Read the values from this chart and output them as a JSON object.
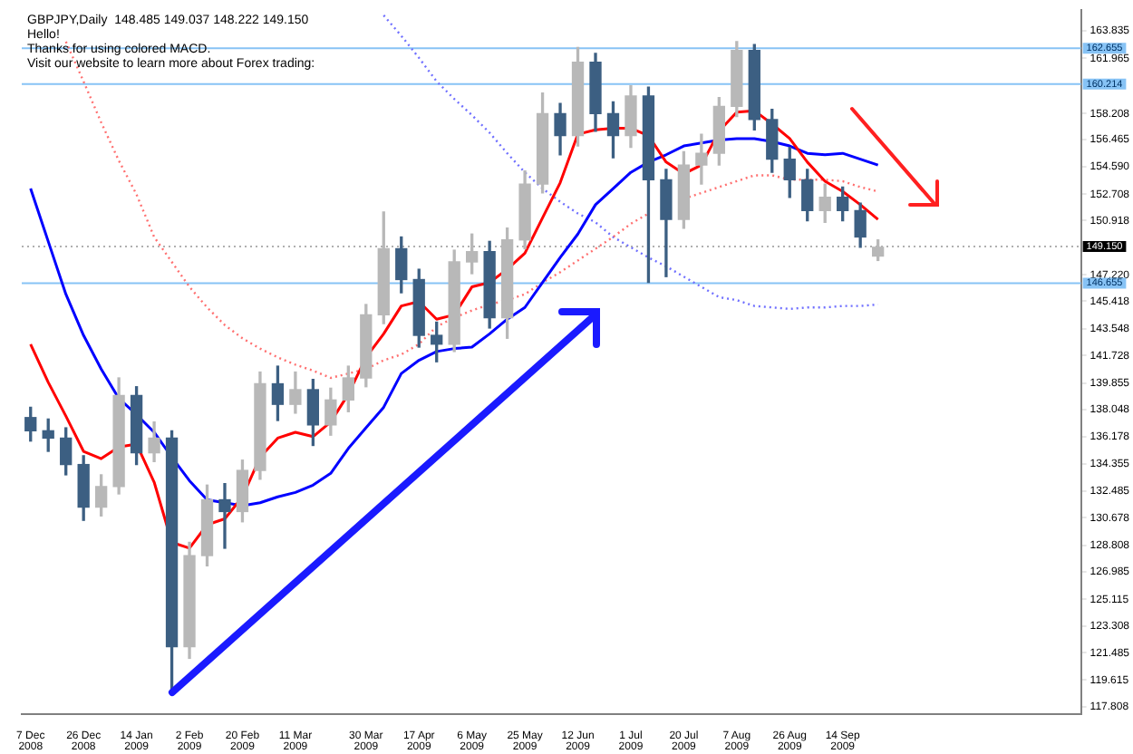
{
  "chart_data": {
    "type": "candlestick",
    "title": "GBPJPY,Daily  148.485 149.037 148.222 149.150",
    "annotations": [
      "Hello!",
      "Thanks for using colored MACD.",
      "Visit our website to learn more about Forex trading:"
    ],
    "categories": [
      "7 Dec 2008",
      null,
      null,
      "26 Dec 2008",
      null,
      null,
      "14 Jan 2009",
      null,
      null,
      "2 Feb 2009",
      null,
      null,
      "20 Feb 2009",
      null,
      null,
      "11 Mar 2009",
      null,
      null,
      null,
      "30 Mar 2009",
      null,
      null,
      "17 Apr 2009",
      null,
      null,
      "6 May 2009",
      null,
      null,
      "25 May 2009",
      null,
      null,
      "12 Jun 2009",
      null,
      null,
      "1 Jul 2009",
      null,
      null,
      "20 Jul 2009",
      null,
      null,
      "7 Aug 2009",
      null,
      null,
      "26 Aug 2009",
      null,
      null,
      "14 Sep 2009",
      null,
      null,
      null,
      null,
      null,
      null,
      null,
      null,
      null,
      null,
      null,
      null,
      null
    ],
    "ohlc": [
      [
        137.5,
        138.2,
        135.9,
        136.6
      ],
      [
        136.6,
        137.4,
        135.2,
        136.1
      ],
      [
        136.1,
        136.8,
        133.6,
        134.3
      ],
      [
        134.3,
        134.9,
        130.5,
        131.4
      ],
      [
        131.4,
        133.6,
        130.8,
        132.8
      ],
      [
        132.8,
        140.2,
        132.3,
        139.0
      ],
      [
        139.0,
        139.6,
        134.3,
        135.1
      ],
      [
        135.1,
        137.2,
        134.5,
        136.1
      ],
      [
        136.1,
        136.6,
        119.0,
        121.9
      ],
      [
        121.9,
        129.0,
        121.1,
        128.1
      ],
      [
        128.1,
        132.9,
        127.4,
        131.9
      ],
      [
        131.9,
        133.0,
        128.6,
        131.1
      ],
      [
        131.1,
        134.6,
        130.4,
        133.9
      ],
      [
        133.9,
        140.6,
        133.3,
        139.8
      ],
      [
        139.8,
        141.0,
        137.3,
        138.4
      ],
      [
        138.4,
        140.6,
        137.8,
        139.4
      ],
      [
        139.4,
        140.1,
        135.6,
        137.0
      ],
      [
        137.0,
        139.5,
        136.3,
        138.7
      ],
      [
        138.7,
        141.0,
        137.9,
        140.2
      ],
      [
        140.2,
        145.2,
        139.6,
        144.5
      ],
      [
        144.5,
        151.5,
        143.9,
        149.0
      ],
      [
        149.0,
        149.8,
        146.0,
        146.9
      ],
      [
        146.9,
        147.6,
        142.3,
        143.1
      ],
      [
        143.1,
        144.0,
        141.3,
        142.5
      ],
      [
        142.5,
        148.9,
        142.0,
        148.1
      ],
      [
        148.1,
        150.0,
        147.3,
        148.8
      ],
      [
        148.8,
        149.5,
        143.6,
        144.3
      ],
      [
        144.3,
        150.4,
        142.9,
        149.6
      ],
      [
        149.6,
        154.3,
        149.0,
        153.4
      ],
      [
        153.4,
        159.6,
        152.8,
        158.2
      ],
      [
        158.2,
        158.9,
        155.4,
        156.7
      ],
      [
        156.7,
        162.7,
        156.0,
        161.7
      ],
      [
        161.7,
        162.3,
        157.0,
        158.2
      ],
      [
        158.2,
        159.0,
        155.2,
        156.7
      ],
      [
        156.7,
        160.1,
        155.9,
        159.4
      ],
      [
        159.4,
        160.0,
        146.7,
        153.7
      ],
      [
        153.7,
        154.4,
        147.1,
        151.0
      ],
      [
        151.0,
        155.6,
        150.4,
        154.7
      ],
      [
        154.7,
        156.8,
        153.4,
        155.5
      ],
      [
        155.5,
        159.3,
        154.7,
        158.7
      ],
      [
        158.7,
        163.1,
        158.0,
        162.5
      ],
      [
        162.5,
        162.9,
        157.1,
        157.8
      ],
      [
        157.8,
        158.5,
        154.2,
        155.1
      ],
      [
        155.1,
        155.9,
        152.5,
        153.7
      ],
      [
        153.7,
        154.4,
        150.9,
        151.6
      ],
      [
        151.6,
        153.4,
        150.8,
        152.5
      ],
      [
        152.5,
        153.2,
        150.9,
        151.6
      ],
      [
        151.6,
        152.1,
        149.1,
        149.8
      ],
      [
        148.5,
        149.6,
        148.2,
        149.1
      ],
      null,
      null,
      null,
      null,
      null,
      null,
      null,
      null,
      null,
      null,
      null
    ],
    "colors": [
      "#3c5f82",
      "#3c5f82",
      "#3c5f82",
      "#3c5f82",
      "#b8b8b8",
      "#b8b8b8",
      "#3c5f82",
      "#b8b8b8",
      "#3c5f82",
      "#b8b8b8",
      "#b8b8b8",
      "#3c5f82",
      "#b8b8b8",
      "#b8b8b8",
      "#3c5f82",
      "#b8b8b8",
      "#3c5f82",
      "#b8b8b8",
      "#b8b8b8",
      "#b8b8b8",
      "#b8b8b8",
      "#3c5f82",
      "#3c5f82",
      "#3c5f82",
      "#b8b8b8",
      "#b8b8b8",
      "#3c5f82",
      "#b8b8b8",
      "#b8b8b8",
      "#b8b8b8",
      "#3c5f82",
      "#b8b8b8",
      "#3c5f82",
      "#3c5f82",
      "#b8b8b8",
      "#3c5f82",
      "#3c5f82",
      "#b8b8b8",
      "#b8b8b8",
      "#b8b8b8",
      "#b8b8b8",
      "#3c5f82",
      "#3c5f82",
      "#3c5f82",
      "#3c5f82",
      "#b8b8b8",
      "#3c5f82",
      "#3c5f82",
      "#b8b8b8",
      null,
      null,
      null,
      null,
      null,
      null,
      null,
      null,
      null,
      null,
      null
    ],
    "series": [
      {
        "type": "line",
        "color": "#ff0000",
        "line_style": "solid",
        "values": [
          142.5,
          139.9,
          137.6,
          135.2,
          134.7,
          135.5,
          135.7,
          133.1,
          129.0,
          128.6,
          130.2,
          130.6,
          132.1,
          134.8,
          136.1,
          136.5,
          136.2,
          137.2,
          139.1,
          141.6,
          143.2,
          145.1,
          145.4,
          144.2,
          144.5,
          146.4,
          146.7,
          147.6,
          148.7,
          151.1,
          153.5,
          156.8,
          157.1,
          157.2,
          157.2,
          156.7,
          154.9,
          154.1,
          154.7,
          157.0,
          158.3,
          158.4,
          157.5,
          156.5,
          154.9,
          153.6,
          152.9,
          152.0,
          151.0,
          null,
          null,
          null,
          null,
          null,
          null,
          null,
          null,
          null,
          null,
          null
        ]
      },
      {
        "type": "line",
        "color": "#0000ff",
        "line_style": "solid",
        "values": [
          153.1,
          149.5,
          145.9,
          143.1,
          140.8,
          138.8,
          137.7,
          136.5,
          134.8,
          133.2,
          131.9,
          131.7,
          131.5,
          131.7,
          132.1,
          132.4,
          132.9,
          133.7,
          135.4,
          136.8,
          138.2,
          140.5,
          141.4,
          142.0,
          142.2,
          142.3,
          143.2,
          144.2,
          145.0,
          146.7,
          148.4,
          150.0,
          152.0,
          153.1,
          154.2,
          154.9,
          155.4,
          156.0,
          156.2,
          156.4,
          156.5,
          156.5,
          156.3,
          156.0,
          155.5,
          155.4,
          155.5,
          155.1,
          154.7,
          null,
          null,
          null,
          null,
          null,
          null,
          null,
          null,
          null,
          null,
          null
        ]
      },
      {
        "type": "line",
        "color": "#ff7070",
        "line_style": "dotted",
        "values": [
          null,
          null,
          163.1,
          160.4,
          157.6,
          155.0,
          152.7,
          149.8,
          148.1,
          146.4,
          145.0,
          143.8,
          142.9,
          142.2,
          141.6,
          141.1,
          140.7,
          140.2,
          140.5,
          140.8,
          141.4,
          141.8,
          142.5,
          143.7,
          144.3,
          144.8,
          145.2,
          145.5,
          145.9,
          146.7,
          147.4,
          148.2,
          149.0,
          149.8,
          150.7,
          151.4,
          null,
          152.4,
          152.8,
          153.2,
          153.6,
          154.0,
          154.0,
          153.7,
          153.7,
          153.7,
          153.6,
          153.2,
          152.9,
          null,
          null,
          null,
          null,
          null,
          null,
          null,
          null,
          null,
          null,
          null
        ]
      },
      {
        "type": "line",
        "color": "#7070ff",
        "line_style": "dotted",
        "values": [
          null,
          null,
          null,
          null,
          null,
          null,
          null,
          null,
          null,
          null,
          null,
          null,
          null,
          null,
          null,
          null,
          null,
          null,
          null,
          null,
          164.9,
          163.5,
          162.0,
          160.4,
          159.2,
          158.1,
          156.9,
          155.5,
          154.2,
          153.1,
          152.2,
          151.4,
          150.8,
          149.8,
          149.1,
          148.4,
          147.8,
          147.1,
          146.4,
          145.7,
          145.5,
          145.1,
          145.0,
          144.9,
          145.0,
          145.0,
          145.1,
          145.1,
          145.2,
          null,
          null,
          null,
          null,
          null,
          null,
          null,
          null,
          null,
          null,
          null
        ]
      }
    ],
    "marker": "none",
    "ylim": [
      117.3,
      165.25
    ],
    "yticks": [
      163.835,
      161.965,
      158.208,
      156.465,
      {
        "value": 154.59,
        "label": "154.590"
      },
      152.708,
      150.918,
      {
        "value": 147.22,
        "label": "147.220"
      },
      145.418,
      143.548,
      141.728,
      139.855,
      138.048,
      136.178,
      134.355,
      132.485,
      130.678,
      128.808,
      126.985,
      125.115,
      123.308,
      121.485,
      119.615,
      117.808
    ],
    "ref_lines": [
      {
        "axis": "y",
        "value": 162.655,
        "label": "162.655",
        "color": "#87c3f5"
      },
      {
        "axis": "y",
        "value": 160.214,
        "label": "160.214",
        "color": "#87c3f5"
      },
      {
        "axis": "y",
        "value": 146.655,
        "label": "146.655",
        "color": "#87c3f5"
      },
      {
        "axis": "y",
        "value": 149.15,
        "label": "149.150",
        "color": "#b0b0b0",
        "line_style": "dotted"
      }
    ]
  }
}
